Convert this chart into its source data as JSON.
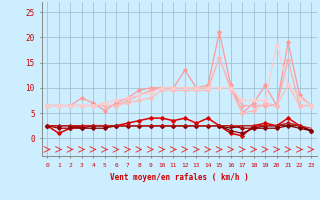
{
  "xlabel": "Vent moyen/en rafales ( km/h )",
  "bg_color": "#cceeff",
  "grid_color": "#99bbcc",
  "x": [
    0,
    1,
    2,
    3,
    4,
    5,
    6,
    7,
    8,
    9,
    10,
    11,
    12,
    13,
    14,
    15,
    16,
    17,
    18,
    19,
    20,
    21,
    22,
    23
  ],
  "series": [
    {
      "values": [
        6.5,
        6.5,
        6.5,
        8.0,
        7.0,
        5.5,
        7.0,
        8.0,
        9.5,
        10.0,
        10.0,
        10.0,
        13.5,
        10.0,
        10.5,
        21.0,
        10.5,
        5.0,
        7.0,
        10.5,
        6.5,
        19.0,
        8.5,
        6.5
      ],
      "color": "#ff9999",
      "lw": 0.9,
      "marker": "D",
      "ms": 1.8
    },
    {
      "values": [
        6.5,
        6.5,
        6.5,
        6.5,
        6.5,
        6.5,
        6.5,
        7.5,
        8.5,
        9.5,
        10.0,
        10.0,
        10.0,
        10.0,
        10.0,
        16.0,
        10.0,
        6.5,
        6.5,
        6.5,
        6.5,
        15.5,
        6.5,
        6.5
      ],
      "color": "#ffaaaa",
      "lw": 0.9,
      "marker": "D",
      "ms": 1.8
    },
    {
      "values": [
        6.5,
        6.5,
        6.5,
        6.5,
        6.5,
        6.5,
        6.5,
        7.0,
        7.5,
        8.0,
        9.5,
        9.5,
        9.5,
        9.5,
        9.5,
        16.0,
        9.5,
        5.0,
        5.5,
        7.0,
        6.5,
        10.5,
        6.5,
        6.5
      ],
      "color": "#ffbbbb",
      "lw": 0.9,
      "marker": "D",
      "ms": 1.8
    },
    {
      "values": [
        6.5,
        6.5,
        6.5,
        6.5,
        6.5,
        7.0,
        7.5,
        8.0,
        8.5,
        9.0,
        10.0,
        10.0,
        10.0,
        10.0,
        10.0,
        10.0,
        10.0,
        7.5,
        7.5,
        7.5,
        18.5,
        10.5,
        8.0,
        6.5
      ],
      "color": "#ffcccc",
      "lw": 0.9,
      "marker": "D",
      "ms": 1.8
    },
    {
      "values": [
        2.5,
        1.0,
        2.0,
        2.5,
        2.5,
        2.5,
        2.5,
        3.0,
        3.5,
        4.0,
        4.0,
        3.5,
        4.0,
        3.0,
        4.0,
        2.5,
        1.0,
        0.5,
        2.5,
        3.0,
        2.5,
        4.0,
        2.5,
        1.5
      ],
      "color": "#dd0000",
      "lw": 1.1,
      "marker": "D",
      "ms": 1.8
    },
    {
      "values": [
        2.5,
        2.0,
        2.0,
        2.0,
        2.5,
        2.5,
        2.5,
        2.5,
        2.5,
        2.5,
        2.5,
        2.5,
        2.5,
        2.5,
        2.5,
        2.5,
        2.5,
        2.0,
        2.0,
        2.5,
        2.5,
        3.0,
        2.5,
        1.5
      ],
      "color": "#aa0000",
      "lw": 0.9,
      "marker": "D",
      "ms": 1.8
    },
    {
      "values": [
        2.5,
        2.5,
        2.5,
        2.0,
        2.0,
        2.0,
        2.5,
        2.5,
        2.5,
        2.5,
        2.5,
        2.5,
        2.5,
        2.5,
        2.5,
        2.5,
        1.5,
        1.0,
        2.0,
        2.0,
        2.0,
        2.5,
        2.0,
        1.5
      ],
      "color": "#880000",
      "lw": 0.9,
      "marker": "D",
      "ms": 1.8
    },
    {
      "values": [
        2.5,
        2.5,
        2.5,
        2.5,
        2.5,
        2.5,
        2.5,
        2.5,
        2.5,
        2.5,
        2.5,
        2.5,
        2.5,
        2.5,
        2.5,
        2.5,
        2.0,
        2.5,
        2.5,
        2.5,
        2.5,
        2.5,
        2.5,
        1.5
      ],
      "color": "#660000",
      "lw": 0.8,
      "marker": null,
      "ms": 0
    },
    {
      "values": [
        2.5,
        2.5,
        2.5,
        2.5,
        2.5,
        2.5,
        2.5,
        2.5,
        2.5,
        2.5,
        2.5,
        2.5,
        2.5,
        2.5,
        2.5,
        2.5,
        2.5,
        2.5,
        2.5,
        2.5,
        2.5,
        3.0,
        2.5,
        2.0
      ],
      "color": "#cc2222",
      "lw": 0.8,
      "marker": null,
      "ms": 0
    }
  ],
  "ylim": [
    -3.5,
    27
  ],
  "yticks": [
    0,
    5,
    10,
    15,
    20,
    25
  ],
  "xlim": [
    -0.5,
    23.5
  ],
  "xticks": [
    0,
    1,
    2,
    3,
    4,
    5,
    6,
    7,
    8,
    9,
    10,
    11,
    12,
    13,
    14,
    15,
    16,
    17,
    18,
    19,
    20,
    21,
    22,
    23
  ]
}
